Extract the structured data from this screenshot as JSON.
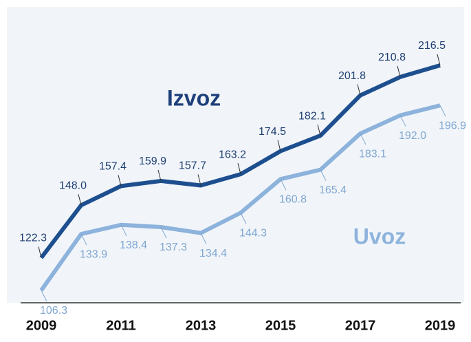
{
  "chart_data": {
    "type": "line",
    "categories": [
      "2009",
      null,
      "2011",
      null,
      "2013",
      null,
      "2015",
      null,
      "2017",
      null,
      "2019"
    ],
    "series": [
      {
        "name": "Izvoz",
        "color": "#1d4f8f",
        "values": [
          122.3,
          148.0,
          157.4,
          159.9,
          157.7,
          163.2,
          174.5,
          182.1,
          201.8,
          210.8,
          216.5
        ],
        "value_labels": [
          "122.3",
          "148.0",
          "157.4",
          "159.9",
          "157.7",
          "163.2",
          "174.5",
          "182.1",
          "201.8",
          "210.8",
          "216.5"
        ]
      },
      {
        "name": "Uvoz",
        "color": "#8db3dc",
        "values": [
          106.3,
          133.9,
          138.4,
          137.3,
          134.4,
          144.3,
          160.8,
          165.4,
          183.1,
          192.0,
          196.9
        ],
        "value_labels": [
          "106.3",
          "133.9",
          "138.4",
          "137.3",
          "134.4",
          "144.3",
          "160.8",
          "165.4",
          "183.1",
          "192.0",
          "196.9"
        ]
      }
    ]
  }
}
